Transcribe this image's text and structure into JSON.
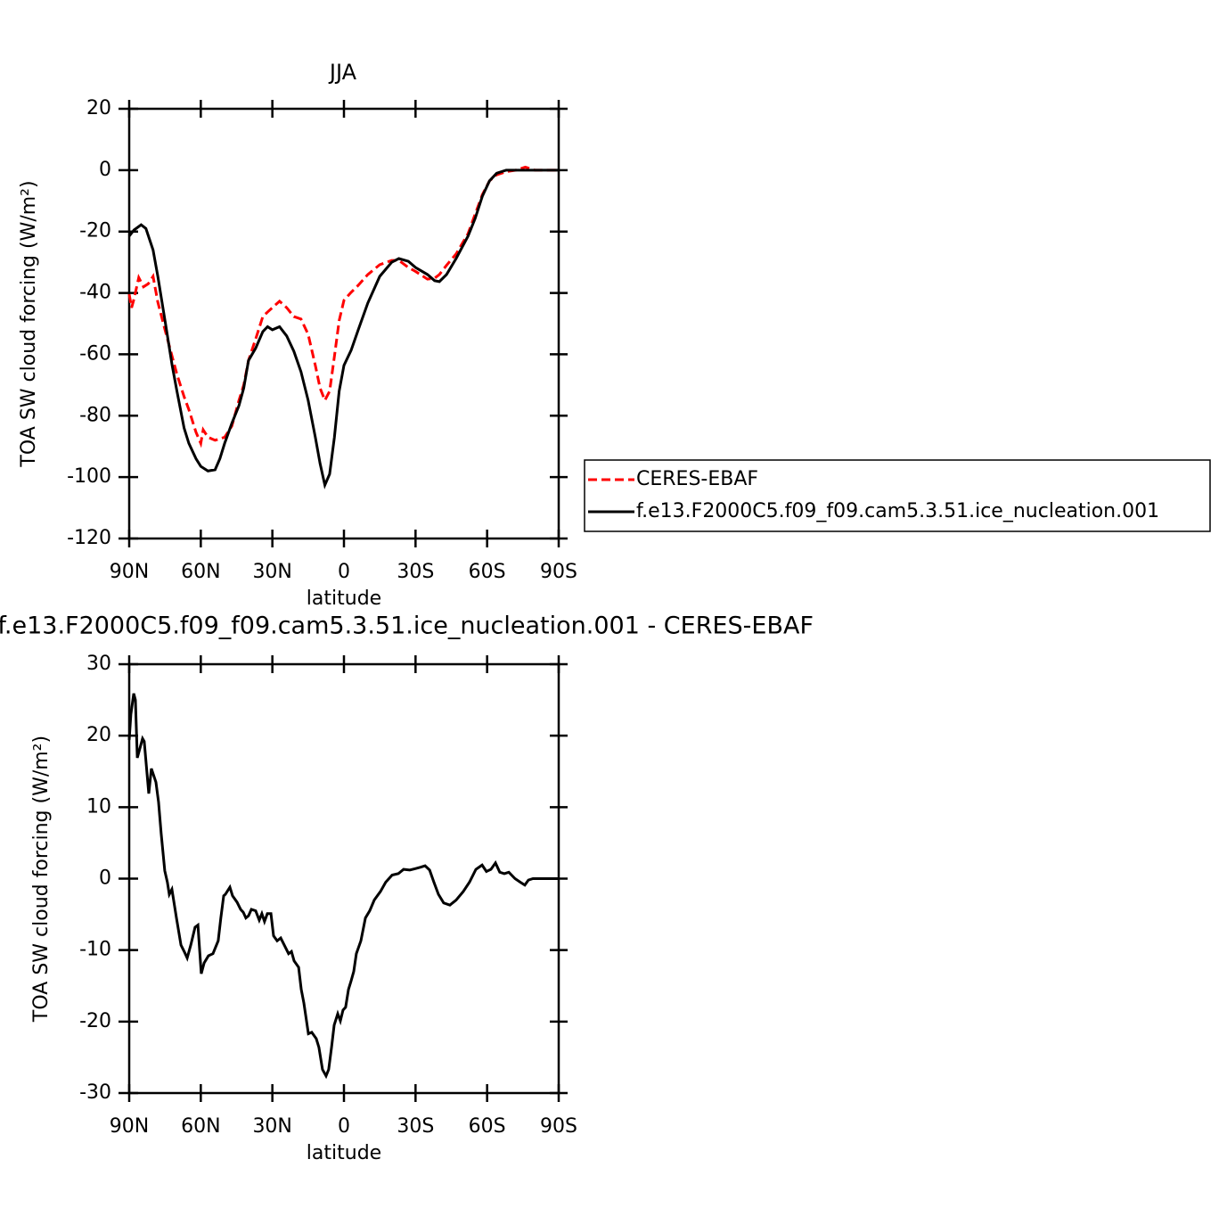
{
  "chart_data": [
    {
      "type": "line",
      "title": "JJA",
      "xlabel": "latitude",
      "ylabel": "TOA SW cloud forcing (W/m²)",
      "xlim": [
        90,
        -90
      ],
      "xticks": [
        {
          "value": 90,
          "label": "90N"
        },
        {
          "value": 60,
          "label": "60N"
        },
        {
          "value": 30,
          "label": "30N"
        },
        0,
        {
          "value": -30,
          "label": "30S"
        },
        {
          "value": -60,
          "label": "60S"
        },
        {
          "value": -90,
          "label": "90S"
        }
      ],
      "ylim": [
        -120,
        20
      ],
      "yticks": [
        -120,
        -100,
        -80,
        -60,
        -40,
        -20,
        0,
        20
      ],
      "legend": "right",
      "series": [
        {
          "name": "CERES-EBAF",
          "color": "#ff0000",
          "line_style": "dashed",
          "x": [
            90,
            89,
            88,
            86,
            84,
            82,
            80,
            78,
            75,
            72,
            70,
            67,
            65,
            62,
            60,
            59,
            57,
            54,
            50,
            47,
            44,
            42,
            40,
            37,
            34,
            32,
            30,
            27,
            24,
            21,
            18,
            15,
            12,
            10,
            8,
            6,
            4,
            2,
            0,
            -3,
            -6,
            -10,
            -15,
            -20,
            -23,
            -27,
            -30,
            -35,
            -38,
            -40,
            -43,
            -47,
            -52,
            -55,
            -58,
            -61,
            -64,
            -68,
            -72,
            -76,
            -80,
            -90
          ],
          "values": [
            -40.4,
            -44.8,
            -42,
            -35,
            -38,
            -37,
            -34.6,
            -43,
            -52,
            -60.7,
            -66.5,
            -73.8,
            -78,
            -85.4,
            -89,
            -84.6,
            -87,
            -88,
            -87,
            -83.4,
            -75,
            -70,
            -62,
            -55,
            -47.7,
            -46.2,
            -44.8,
            -42.7,
            -44.8,
            -47.7,
            -48.5,
            -53.5,
            -63.6,
            -71,
            -75,
            -72,
            -60.7,
            -49,
            -42.4,
            -39.8,
            -37.5,
            -34,
            -30.8,
            -29.4,
            -29.4,
            -31.7,
            -33,
            -35.5,
            -35.2,
            -34,
            -31,
            -27.3,
            -20.7,
            -14.3,
            -8,
            -3.5,
            -1.5,
            -0.5,
            0,
            1,
            0,
            0
          ]
        },
        {
          "name": "f.e13.F2000C5.f09_f09.cam5.3.51.ice_nucleation.001",
          "color": "#000000",
          "line_style": "solid",
          "x": [
            90,
            88,
            85,
            83,
            80,
            78,
            75,
            72,
            70,
            67,
            65,
            62,
            60,
            57,
            54,
            52,
            50,
            47,
            44,
            42,
            40,
            37,
            34,
            32,
            30,
            27,
            24,
            21,
            18,
            15,
            12,
            10,
            8,
            6,
            4,
            2,
            0,
            -3,
            -6,
            -10,
            -15,
            -20,
            -23,
            -27,
            -30,
            -35,
            -38,
            -40,
            -43,
            -47,
            -52,
            -55,
            -58,
            -61,
            -64,
            -68,
            -90
          ],
          "values": [
            -21.5,
            -19.5,
            -17.8,
            -19,
            -26,
            -34.6,
            -49,
            -63.6,
            -72,
            -84,
            -89,
            -94,
            -96.5,
            -98,
            -97.6,
            -94,
            -89,
            -82.5,
            -76.7,
            -71,
            -62,
            -58,
            -52.6,
            -51,
            -52,
            -51,
            -54,
            -59,
            -65.7,
            -75,
            -87,
            -95.6,
            -102.6,
            -99,
            -87,
            -72,
            -63.6,
            -58.7,
            -52,
            -43.3,
            -34.6,
            -30,
            -28.8,
            -29.7,
            -31.7,
            -34,
            -36,
            -36.3,
            -34,
            -28.8,
            -21.5,
            -15.7,
            -8.5,
            -3.5,
            -1,
            0,
            0
          ]
        }
      ]
    },
    {
      "type": "line",
      "title": "f.e13.F2000C5.f09_f09.cam5.3.51.ice_nucleation.001 - CERES-EBAF",
      "xlabel": "latitude",
      "ylabel": "TOA SW cloud forcing (W/m²)",
      "xlim": [
        90,
        -90
      ],
      "xticks": [
        {
          "value": 90,
          "label": "90N"
        },
        {
          "value": 60,
          "label": "60N"
        },
        {
          "value": 30,
          "label": "30N"
        },
        0,
        {
          "value": -30,
          "label": "30S"
        },
        {
          "value": -60,
          "label": "60S"
        },
        {
          "value": -90,
          "label": "90S"
        }
      ],
      "ylim": [
        -30,
        30
      ],
      "yticks": [
        -30,
        -20,
        -10,
        0,
        10,
        20,
        30
      ],
      "series": [
        {
          "color": "#000000",
          "line_style": "solid",
          "x": [
            90,
            89.3,
            88.1,
            87.4,
            86.6,
            84.4,
            83.7,
            81.8,
            80.7,
            78.8,
            77.7,
            76.6,
            75.1,
            74,
            73.2,
            72.1,
            70.2,
            68.3,
            66.8,
            65.7,
            64.2,
            62.4,
            61.2,
            59.8,
            58.6,
            56.8,
            54.9,
            52.7,
            51.6,
            50.4,
            49.7,
            47.8,
            46.7,
            44.8,
            43.3,
            42.2,
            41.1,
            40,
            38.8,
            37,
            35.5,
            34.4,
            33.3,
            32.1,
            30.6,
            29.5,
            28,
            26.5,
            24.7,
            23.2,
            22,
            20.9,
            19,
            17.9,
            16.8,
            14.9,
            13.5,
            11.6,
            10.5,
            9,
            7.5,
            6.4,
            5.2,
            4.1,
            2.6,
            1.5,
            0.4,
            -0.7,
            -1.9,
            -3,
            -4.1,
            -5.2,
            -7.1,
            -9,
            -10.8,
            -12.7,
            -15.3,
            -17.5,
            -20.2,
            -22.8,
            -25,
            -27.6,
            -29.9,
            -32.1,
            -34,
            -35.9,
            -37.7,
            -39.6,
            -41.8,
            -44.4,
            -47,
            -50,
            -52.6,
            -55.3,
            -57.9,
            -59.7,
            -61.6,
            -63.5,
            -65.3,
            -67.2,
            -69.1,
            -71.7,
            -73.9,
            -75.8,
            -77.3,
            -79.2,
            -83.7,
            -90
          ],
          "values": [
            19.4,
            23,
            25.9,
            25,
            16.9,
            19.6,
            19.2,
            11.9,
            15.4,
            13.5,
            10.7,
            6.3,
            1.1,
            -0.5,
            -2.2,
            -1.5,
            -5.5,
            -9.3,
            -10.3,
            -11.1,
            -9.3,
            -6.8,
            -6.5,
            -13.3,
            -11.8,
            -10.8,
            -10.5,
            -8.7,
            -5.5,
            -2.4,
            -2.2,
            -1.2,
            -2.4,
            -3.3,
            -4.3,
            -4.7,
            -5.5,
            -5.2,
            -4.3,
            -4.5,
            -5.8,
            -4.9,
            -6,
            -4.9,
            -4.9,
            -8,
            -8.7,
            -8.3,
            -9.5,
            -10.5,
            -10.2,
            -11.5,
            -12.4,
            -15.5,
            -17.4,
            -21.7,
            -21.5,
            -22.4,
            -23.6,
            -26.7,
            -27.6,
            -26.7,
            -23.6,
            -20.5,
            -18.9,
            -19.9,
            -18.4,
            -18,
            -15.5,
            -14.3,
            -13,
            -10.5,
            -8.7,
            -5.5,
            -4.5,
            -3,
            -1.8,
            -0.5,
            0.5,
            0.7,
            1.3,
            1.2,
            1.4,
            1.6,
            1.8,
            1.2,
            -0.5,
            -2.2,
            -3.4,
            -3.7,
            -3,
            -1.8,
            -0.5,
            1.3,
            1.9,
            1,
            1.3,
            2.2,
            0.9,
            0.7,
            0.9,
            0,
            -0.5,
            -0.9,
            -0.2,
            0,
            0,
            0
          ]
        }
      ]
    }
  ]
}
